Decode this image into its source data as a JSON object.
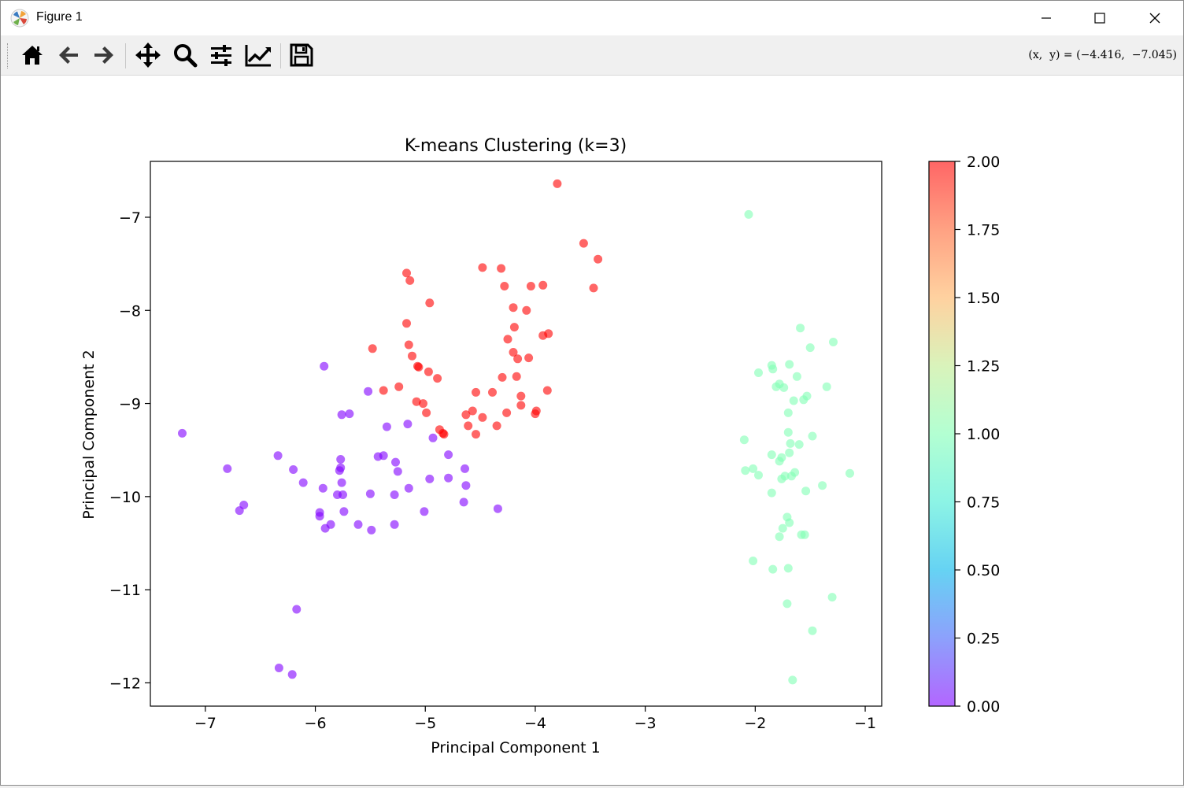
{
  "window": {
    "title": "Figure 1",
    "controls": {
      "minimize": "minimize",
      "maximize": "maximize",
      "close": "close"
    }
  },
  "toolbar": {
    "buttons": [
      {
        "name": "home",
        "icon": "home-icon"
      },
      {
        "name": "back",
        "icon": "arrow-left-icon"
      },
      {
        "name": "forward",
        "icon": "arrow-right-icon"
      },
      {
        "name": "pan",
        "icon": "move-icon"
      },
      {
        "name": "zoom",
        "icon": "magnifier-icon"
      },
      {
        "name": "subplots",
        "icon": "sliders-icon"
      },
      {
        "name": "edit-axis",
        "icon": "line-chart-icon"
      },
      {
        "name": "save",
        "icon": "floppy-disk-icon"
      }
    ],
    "coordinates": "(x,  y) = (−4.416,  −7.045)"
  },
  "chart_data": {
    "type": "scatter",
    "title": "K-means Clustering (k=3)",
    "xlabel": "Principal Component 1",
    "ylabel": "Principal Component 2",
    "xlim": [
      -7.5,
      -0.85
    ],
    "ylim": [
      -12.25,
      -6.4
    ],
    "xticks": [
      -7,
      -6,
      -5,
      -4,
      -3,
      -2,
      -1
    ],
    "yticks": [
      -12,
      -11,
      -10,
      -9,
      -8,
      -7
    ],
    "xtick_labels": [
      "−7",
      "−6",
      "−5",
      "−4",
      "−3",
      "−2",
      "−1"
    ],
    "ytick_labels": [
      "−12",
      "−11",
      "−10",
      "−9",
      "−8",
      "−7"
    ],
    "colorbar": {
      "min": 0,
      "max": 2,
      "colormap": "rainbow",
      "alpha": 0.6,
      "ticks": [
        0,
        0.25,
        0.5,
        0.75,
        1.0,
        1.25,
        1.5,
        1.75,
        2.0
      ],
      "tick_labels": [
        "0.00",
        "0.25",
        "0.50",
        "0.75",
        "1.00",
        "1.25",
        "1.50",
        "1.75",
        "2.00"
      ]
    },
    "cluster_colors": [
      "#8000ff",
      "#80ffb4",
      "#ff0000"
    ],
    "series": [
      {
        "cluster": 0,
        "points": [
          [
            -7.21,
            -9.32
          ],
          [
            -6.8,
            -9.7
          ],
          [
            -6.69,
            -10.15
          ],
          [
            -6.65,
            -10.09
          ],
          [
            -6.34,
            -9.56
          ],
          [
            -6.2,
            -9.71
          ],
          [
            -6.11,
            -9.85
          ],
          [
            -5.96,
            -10.17
          ],
          [
            -5.96,
            -10.21
          ],
          [
            -5.93,
            -9.91
          ],
          [
            -5.91,
            -10.34
          ],
          [
            -5.92,
            -8.6
          ],
          [
            -5.86,
            -10.3
          ],
          [
            -5.8,
            -9.98
          ],
          [
            -5.78,
            -9.72
          ],
          [
            -5.77,
            -9.69
          ],
          [
            -5.77,
            -9.6
          ],
          [
            -5.76,
            -9.12
          ],
          [
            -5.76,
            -9.85
          ],
          [
            -5.75,
            -9.98
          ],
          [
            -5.74,
            -10.16
          ],
          [
            -5.69,
            -9.11
          ],
          [
            -5.61,
            -10.3
          ],
          [
            -5.52,
            -8.87
          ],
          [
            -5.5,
            -9.97
          ],
          [
            -5.49,
            -10.36
          ],
          [
            -5.43,
            -9.57
          ],
          [
            -5.38,
            -9.56
          ],
          [
            -5.35,
            -9.25
          ],
          [
            -5.28,
            -9.98
          ],
          [
            -5.28,
            -10.3
          ],
          [
            -5.27,
            -9.63
          ],
          [
            -5.25,
            -9.73
          ],
          [
            -5.16,
            -9.22
          ],
          [
            -5.15,
            -9.91
          ],
          [
            -5.01,
            -10.16
          ],
          [
            -4.96,
            -9.81
          ],
          [
            -4.93,
            -9.37
          ],
          [
            -4.79,
            -9.55
          ],
          [
            -4.79,
            -9.8
          ],
          [
            -4.65,
            -10.06
          ],
          [
            -4.64,
            -9.7
          ],
          [
            -4.63,
            -9.88
          ],
          [
            -4.34,
            -10.13
          ],
          [
            -6.17,
            -11.21
          ],
          [
            -6.33,
            -11.84
          ],
          [
            -6.21,
            -11.91
          ]
        ]
      },
      {
        "cluster": 1,
        "points": [
          [
            -2.06,
            -6.97
          ],
          [
            -1.59,
            -8.19
          ],
          [
            -1.29,
            -8.34
          ],
          [
            -1.5,
            -8.4
          ],
          [
            -1.97,
            -8.67
          ],
          [
            -1.85,
            -8.59
          ],
          [
            -1.84,
            -8.63
          ],
          [
            -1.69,
            -8.58
          ],
          [
            -1.81,
            -8.82
          ],
          [
            -1.78,
            -8.79
          ],
          [
            -1.74,
            -8.83
          ],
          [
            -1.62,
            -8.71
          ],
          [
            -1.35,
            -8.82
          ],
          [
            -1.53,
            -8.92
          ],
          [
            -1.56,
            -8.96
          ],
          [
            -1.65,
            -8.97
          ],
          [
            -1.7,
            -9.1
          ],
          [
            -1.7,
            -9.31
          ],
          [
            -1.48,
            -9.35
          ],
          [
            -2.1,
            -9.39
          ],
          [
            -1.68,
            -9.43
          ],
          [
            -1.6,
            -9.44
          ],
          [
            -1.69,
            -9.53
          ],
          [
            -1.85,
            -9.55
          ],
          [
            -1.76,
            -9.58
          ],
          [
            -1.78,
            -9.62
          ],
          [
            -2.09,
            -9.72
          ],
          [
            -2.02,
            -9.7
          ],
          [
            -1.97,
            -9.77
          ],
          [
            -1.76,
            -9.81
          ],
          [
            -1.73,
            -9.78
          ],
          [
            -1.67,
            -9.78
          ],
          [
            -1.64,
            -9.74
          ],
          [
            -1.14,
            -9.75
          ],
          [
            -1.39,
            -9.88
          ],
          [
            -1.54,
            -9.94
          ],
          [
            -1.85,
            -9.96
          ],
          [
            -1.71,
            -10.22
          ],
          [
            -1.69,
            -10.28
          ],
          [
            -1.75,
            -10.34
          ],
          [
            -1.58,
            -10.41
          ],
          [
            -1.55,
            -10.41
          ],
          [
            -1.78,
            -10.43
          ],
          [
            -2.02,
            -10.69
          ],
          [
            -1.84,
            -10.78
          ],
          [
            -1.7,
            -10.77
          ],
          [
            -1.3,
            -11.08
          ],
          [
            -1.71,
            -11.15
          ],
          [
            -1.48,
            -11.44
          ],
          [
            -1.66,
            -11.97
          ]
        ]
      },
      {
        "cluster": 2,
        "points": [
          [
            -3.8,
            -6.64
          ],
          [
            -3.56,
            -7.28
          ],
          [
            -3.43,
            -7.45
          ],
          [
            -3.47,
            -7.76
          ],
          [
            -4.48,
            -7.54
          ],
          [
            -4.31,
            -7.55
          ],
          [
            -4.28,
            -7.74
          ],
          [
            -4.04,
            -7.74
          ],
          [
            -3.93,
            -7.73
          ],
          [
            -5.17,
            -7.6
          ],
          [
            -5.14,
            -7.68
          ],
          [
            -4.96,
            -7.92
          ],
          [
            -4.2,
            -7.97
          ],
          [
            -4.08,
            -8.0
          ],
          [
            -5.17,
            -8.14
          ],
          [
            -4.19,
            -8.18
          ],
          [
            -3.93,
            -8.27
          ],
          [
            -3.88,
            -8.25
          ],
          [
            -4.25,
            -8.31
          ],
          [
            -5.48,
            -8.41
          ],
          [
            -5.15,
            -8.37
          ],
          [
            -5.12,
            -8.49
          ],
          [
            -4.2,
            -8.45
          ],
          [
            -4.16,
            -8.52
          ],
          [
            -4.06,
            -8.51
          ],
          [
            -5.07,
            -8.6
          ],
          [
            -5.06,
            -8.61
          ],
          [
            -4.97,
            -8.66
          ],
          [
            -4.17,
            -8.71
          ],
          [
            -4.3,
            -8.72
          ],
          [
            -4.89,
            -8.73
          ],
          [
            -5.38,
            -8.86
          ],
          [
            -5.24,
            -8.82
          ],
          [
            -4.54,
            -8.88
          ],
          [
            -4.39,
            -8.88
          ],
          [
            -3.89,
            -8.86
          ],
          [
            -5.08,
            -8.98
          ],
          [
            -5.02,
            -9.0
          ],
          [
            -4.13,
            -8.92
          ],
          [
            -4.13,
            -9.02
          ],
          [
            -4.99,
            -9.1
          ],
          [
            -4.57,
            -9.08
          ],
          [
            -4.63,
            -9.12
          ],
          [
            -4.48,
            -9.15
          ],
          [
            -4.26,
            -9.1
          ],
          [
            -3.99,
            -9.08
          ],
          [
            -4.0,
            -9.11
          ],
          [
            -4.61,
            -9.24
          ],
          [
            -4.35,
            -9.24
          ],
          [
            -4.87,
            -9.28
          ],
          [
            -4.84,
            -9.32
          ],
          [
            -4.83,
            -9.33
          ],
          [
            -4.54,
            -9.33
          ]
        ]
      }
    ]
  }
}
